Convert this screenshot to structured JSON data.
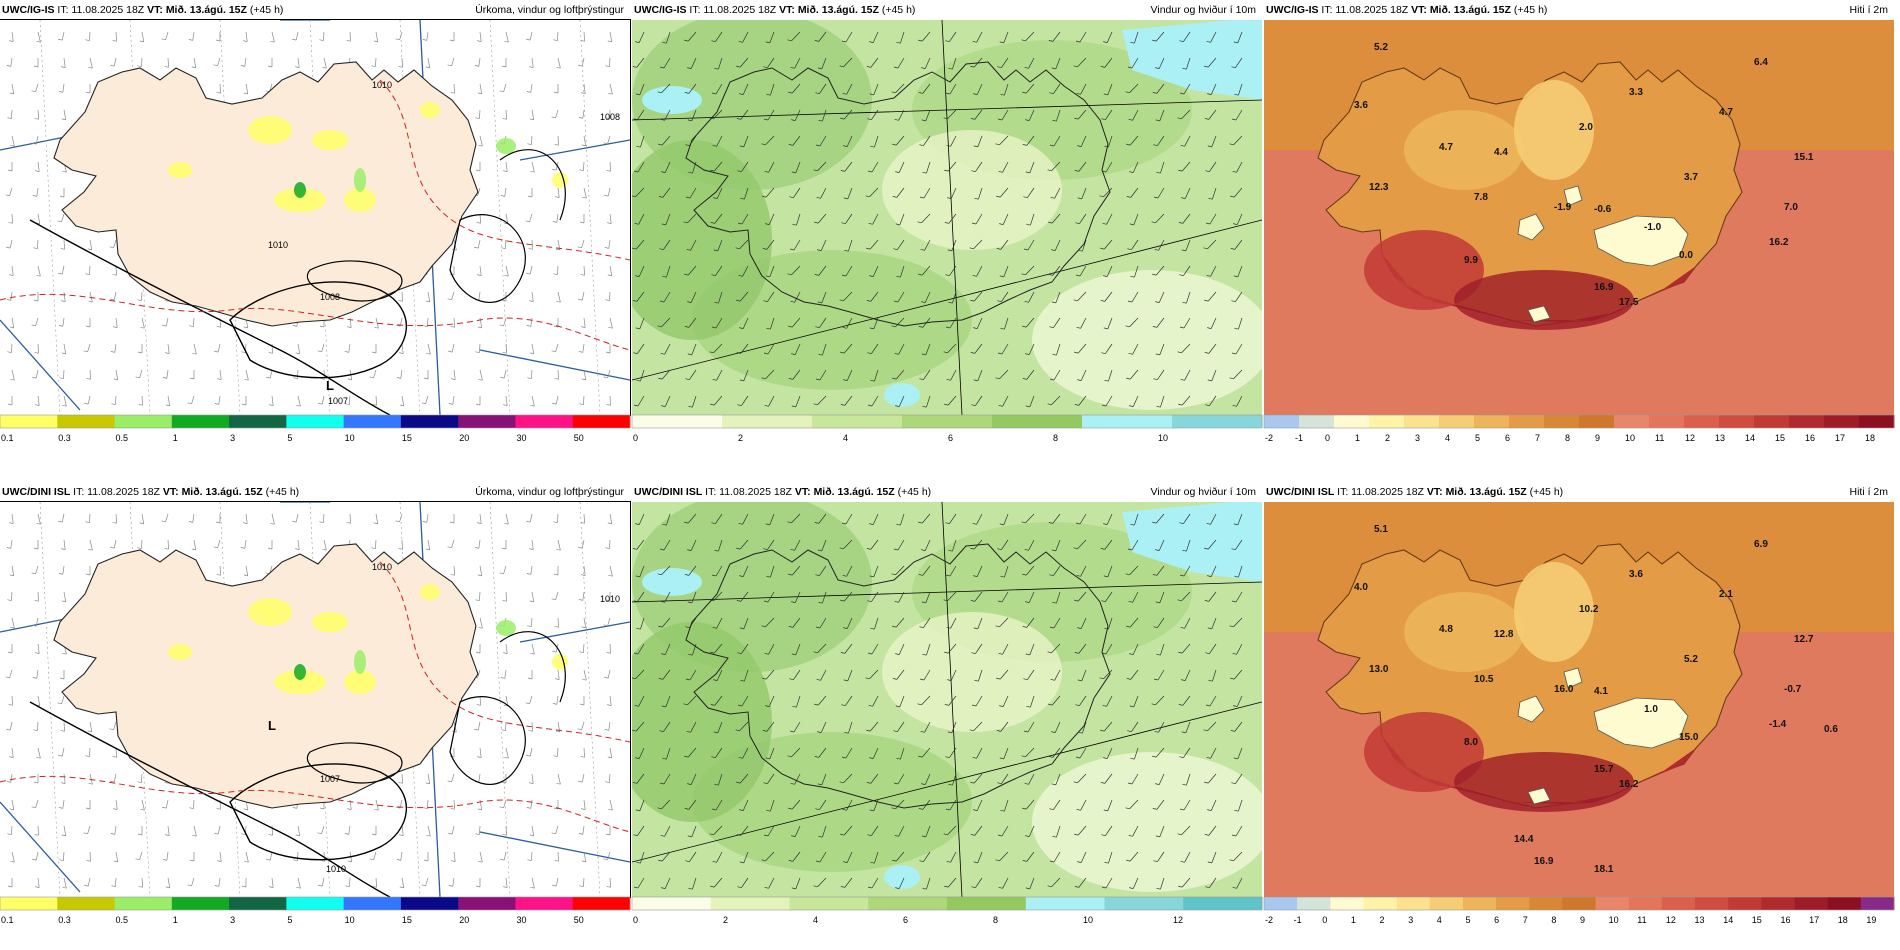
{
  "panels": [
    {
      "model": "UWC/IG-IS",
      "init": "IT: 11.08.2025 18Z",
      "vt_label": "VT:",
      "vt": "Mið. 13.ágú. 15Z",
      "lead": "(+45 h)",
      "title": "Úrkoma, vindur og loftþrýstingur",
      "kind": "precip",
      "colorbar": {
        "colors": [
          "#ffff66",
          "#c8c800",
          "#99ee66",
          "#11aa22",
          "#116644",
          "#11ffee",
          "#3377ff",
          "#0a0a88",
          "#881177",
          "#ff1188",
          "#ff0000"
        ],
        "labels": [
          "0.1",
          "0.3",
          "0.5",
          "1",
          "3",
          "5",
          "10",
          "15",
          "20",
          "30",
          "50"
        ]
      },
      "pressure_labels": [
        "1010",
        "1008",
        "1010",
        "1008",
        "L",
        "1007"
      ],
      "value_labels": []
    },
    {
      "model": "UWC/IG-IS",
      "init": "IT: 11.08.2025 18Z",
      "vt_label": "VT:",
      "vt": "Mið. 13.ágú. 15Z",
      "lead": "(+45 h)",
      "title": "Vindur og hviður í 10m",
      "kind": "wind",
      "colorbar": {
        "colors": [
          "#fcfde8",
          "#e4f3bc",
          "#c9e79a",
          "#add87a",
          "#93c95e",
          "#aaf0f4",
          "#86d7dc"
        ],
        "labels": [
          "0",
          "2",
          "4",
          "6",
          "8",
          "10"
        ]
      },
      "pressure_labels": [],
      "value_labels": []
    },
    {
      "model": "UWC/IG-IS",
      "init": "IT: 11.08.2025 18Z",
      "vt_label": "VT:",
      "vt": "Mið. 13.ágú. 15Z",
      "lead": "(+45 h)",
      "title": "Hiti í 2m",
      "kind": "temp",
      "colorbar": {
        "colors": [
          "#a8c8f0",
          "#d4e4d8",
          "#fffbd0",
          "#fff3a8",
          "#fbe28e",
          "#f5cd74",
          "#ecb55a",
          "#e39c45",
          "#d88734",
          "#cf772a",
          "#e9866a",
          "#e4745a",
          "#db604c",
          "#d04c40",
          "#c23a36",
          "#b02a2e",
          "#9e1c28",
          "#8c1022"
        ],
        "labels": [
          "-2",
          "-1",
          "0",
          "1",
          "2",
          "3",
          "4",
          "5",
          "6",
          "7",
          "8",
          "9",
          "10",
          "11",
          "12",
          "13",
          "14",
          "15",
          "16",
          "17",
          "18"
        ]
      },
      "pressure_labels": [],
      "value_labels": [
        "5.2",
        "6.4",
        "3.6",
        "3.3",
        "2.0",
        "4.7",
        "4.7",
        "4.4",
        "15.1",
        "12.3",
        "3.7",
        "7.8",
        "-1.9",
        "-0.6",
        "-1.0",
        "7.0",
        "16.2",
        "9.9",
        "0.0",
        "16.9",
        "17.5"
      ]
    },
    {
      "model": "UWC/DINI ISL",
      "init": "IT: 11.08.2025 18Z",
      "vt_label": "VT:",
      "vt": "Mið. 13.ágú. 15Z",
      "lead": "(+45 h)",
      "title": "Úrkoma, vindur og loftþrýstingur",
      "kind": "precip",
      "colorbar": {
        "colors": [
          "#ffff66",
          "#c8c800",
          "#99ee66",
          "#11aa22",
          "#116644",
          "#11ffee",
          "#3377ff",
          "#0a0a88",
          "#881177",
          "#ff1188",
          "#ff0000"
        ],
        "labels": [
          "0.1",
          "0.3",
          "0.5",
          "1",
          "3",
          "5",
          "10",
          "15",
          "20",
          "30",
          "50"
        ]
      },
      "pressure_labels": [
        "1010",
        "1010",
        "L",
        "1007",
        "1010"
      ],
      "value_labels": []
    },
    {
      "model": "UWC/DINI ISL",
      "init": "IT: 11.08.2025 18Z",
      "vt_label": "VT:",
      "vt": "Mið. 13.ágú. 15Z",
      "lead": "(+45 h)",
      "title": "Vindur og hviður í 10m",
      "kind": "wind",
      "colorbar": {
        "colors": [
          "#fcfde8",
          "#e4f3bc",
          "#c9e79a",
          "#add87a",
          "#93c95e",
          "#aaf0f4",
          "#86d7dc",
          "#5fc3c8"
        ],
        "labels": [
          "0",
          "2",
          "4",
          "6",
          "8",
          "10",
          "12"
        ]
      },
      "pressure_labels": [],
      "value_labels": []
    },
    {
      "model": "UWC/DINI ISL",
      "init": "IT: 11.08.2025 18Z",
      "vt_label": "VT:",
      "vt": "Mið. 13.ágú. 15Z",
      "lead": "(+45 h)",
      "title": "Hiti í 2m",
      "kind": "temp",
      "colorbar": {
        "colors": [
          "#a8c8f0",
          "#d4e4d8",
          "#fffbd0",
          "#fff3a8",
          "#fbe28e",
          "#f5cd74",
          "#ecb55a",
          "#e39c45",
          "#d88734",
          "#cf772a",
          "#e9866a",
          "#e4745a",
          "#db604c",
          "#d04c40",
          "#c23a36",
          "#b02a2e",
          "#9e1c28",
          "#8c1022",
          "#8a2a88"
        ],
        "labels": [
          "-2",
          "-1",
          "0",
          "1",
          "2",
          "3",
          "4",
          "5",
          "6",
          "7",
          "8",
          "9",
          "10",
          "11",
          "12",
          "13",
          "14",
          "15",
          "16",
          "17",
          "18",
          "19"
        ]
      },
      "pressure_labels": [],
      "value_labels": [
        "5.1",
        "6.9",
        "4.0",
        "3.6",
        "10.2",
        "2.1",
        "4.8",
        "12.8",
        "12.7",
        "13.0",
        "5.2",
        "10.5",
        "16.0",
        "4.1",
        "1.0",
        "-0.7",
        "-1.4",
        "8.0",
        "15.0",
        "15.7",
        "16.2",
        "0.6",
        "14.4",
        "16.9",
        "18.1"
      ]
    }
  ],
  "colors": {
    "land_precip": "#fdebd9",
    "sea": "#ffffff",
    "coast": "#222222",
    "isobar": "#000000",
    "temp_contour": "#cc2222",
    "lat_lines": "#2b5c9e",
    "wind_field": "#b7dc8c"
  }
}
